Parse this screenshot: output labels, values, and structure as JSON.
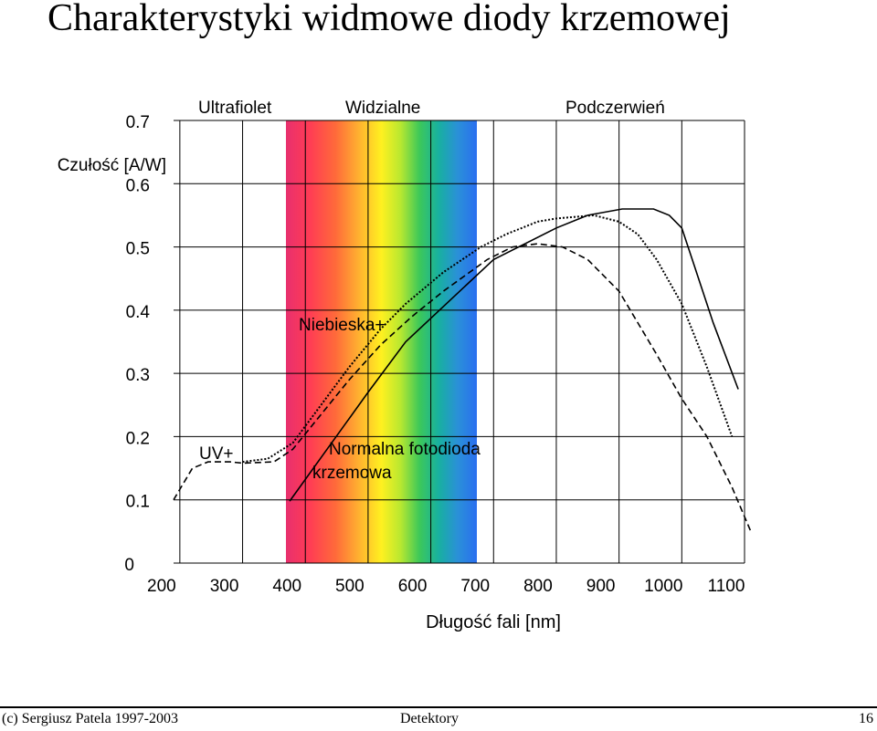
{
  "page": {
    "title": "Charakterystyki widmowe diody krzemowej",
    "footer_left": "(c) Sergiusz Patela 1997-2003",
    "footer_center": "Detektory",
    "footer_right": "16"
  },
  "chart_data": {
    "type": "line",
    "ylabel": "Czułość [A/W]",
    "xlabel": "Długość fali [nm]",
    "xlim": [
      190,
      1100
    ],
    "ylim": [
      0,
      0.7
    ],
    "xticks": [
      "200",
      "300",
      "400",
      "500",
      "600",
      "700",
      "800",
      "900",
      "1000",
      "1100"
    ],
    "yticks": [
      "0",
      "0.1",
      "0.2",
      "0.3",
      "0.4",
      "0.5",
      "0.6",
      "0.7"
    ],
    "grid": true,
    "regions": [
      {
        "label": "Ultrafiolet"
      },
      {
        "label": "Widzialne",
        "range": [
          380,
          680
        ]
      },
      {
        "label": "Podczerwień"
      }
    ],
    "annotations": [
      "Niebieska+",
      "UV+",
      "Normalna fotodioda krzemowa"
    ],
    "series": [
      {
        "name": "Normalna fotodioda krzemowa",
        "style": "solid",
        "x": [
          375,
          500,
          560,
          700,
          800,
          850,
          905,
          955,
          980,
          1000,
          1020,
          1050,
          1090
        ],
        "y": [
          0.098,
          0.27,
          0.35,
          0.48,
          0.53,
          0.55,
          0.56,
          0.56,
          0.55,
          0.53,
          0.47,
          0.38,
          0.275
        ]
      },
      {
        "name": "Niebieska+",
        "style": "dotted",
        "x": [
          300,
          340,
          380,
          425,
          470,
          520,
          560,
          620,
          680,
          720,
          770,
          800,
          860,
          900,
          930,
          960,
          1000,
          1040,
          1080
        ],
        "y": [
          0.16,
          0.165,
          0.19,
          0.25,
          0.31,
          0.37,
          0.41,
          0.46,
          0.5,
          0.52,
          0.54,
          0.545,
          0.55,
          0.54,
          0.52,
          0.48,
          0.41,
          0.31,
          0.2
        ]
      },
      {
        "name": "UV+",
        "style": "dashed",
        "x": [
          190,
          220,
          245,
          280,
          300,
          350,
          380,
          425,
          470,
          520,
          570,
          620,
          690,
          730,
          770,
          810,
          850,
          900,
          960,
          1000,
          1040,
          1080,
          1110
        ],
        "y": [
          0.1,
          0.15,
          0.16,
          0.16,
          0.158,
          0.16,
          0.18,
          0.235,
          0.29,
          0.345,
          0.39,
          0.43,
          0.48,
          0.5,
          0.505,
          0.5,
          0.48,
          0.43,
          0.33,
          0.26,
          0.2,
          0.12,
          0.05
        ]
      }
    ]
  }
}
